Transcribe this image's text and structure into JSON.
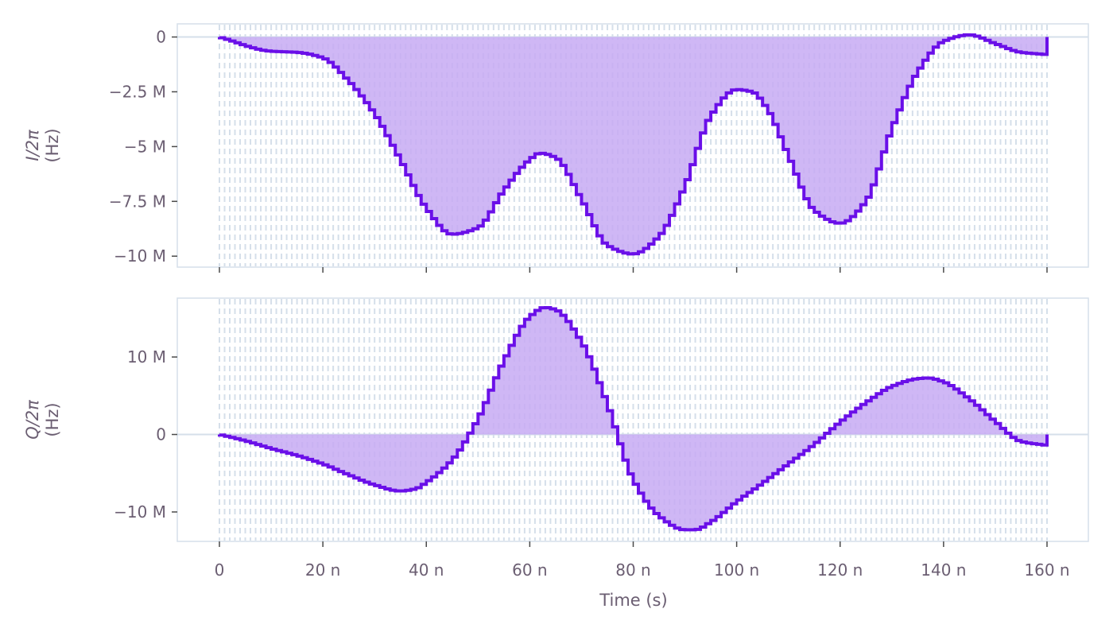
{
  "colors": {
    "line": "#6a0fe8",
    "fill": "#c7aaf3",
    "grid": "#d5dfea",
    "text": "#6b5e72"
  },
  "chart_data": [
    {
      "type": "line",
      "step": true,
      "fill_to_zero": true,
      "ylabel_main": "I/2π",
      "ylabel_unit": "(Hz)",
      "xlim": [
        0,
        160
      ],
      "ylim": [
        -10.5,
        0.6
      ],
      "yticks": [
        0,
        -2.5,
        -5,
        -7.5,
        -10
      ],
      "yticklabels": [
        "0",
        "−2.5 M",
        "−5 M",
        "−7.5 M",
        "−10 M"
      ],
      "x": [
        0,
        10,
        15,
        20,
        25,
        30,
        35,
        40,
        45,
        50,
        55,
        60,
        62,
        65,
        70,
        75,
        80,
        85,
        90,
        95,
        100,
        103,
        106,
        110,
        115,
        120,
        125,
        130,
        135,
        140,
        145,
        150,
        155,
        160
      ],
      "y": [
        0,
        -0.65,
        -0.7,
        -0.95,
        -2.0,
        -3.5,
        -5.6,
        -7.8,
        -9.0,
        -8.7,
        -7.0,
        -5.6,
        -5.3,
        -5.5,
        -7.4,
        -9.5,
        -9.9,
        -9.1,
        -6.8,
        -3.6,
        -2.4,
        -2.5,
        -3.3,
        -5.4,
        -7.9,
        -8.5,
        -7.5,
        -4.2,
        -1.6,
        -0.2,
        0.1,
        -0.3,
        -0.7,
        -0.8
      ]
    },
    {
      "type": "line",
      "step": true,
      "fill_to_zero": true,
      "ylabel_main": "Q/2π",
      "ylabel_unit": "(Hz)",
      "xlabel": "Time (s)",
      "xlim": [
        0,
        160
      ],
      "ylim": [
        -13.8,
        17.6
      ],
      "yticks": [
        10,
        0,
        -10
      ],
      "yticklabels": [
        "10 M",
        "0",
        "−10 M"
      ],
      "xticks": [
        0,
        20,
        40,
        60,
        80,
        100,
        120,
        140,
        160
      ],
      "xticklabels": [
        "0",
        "20 n",
        "40 n",
        "60 n",
        "80 n",
        "100 n",
        "120 n",
        "140 n",
        "160 n"
      ],
      "x": [
        0,
        5,
        10,
        15,
        20,
        25,
        30,
        35,
        38,
        40,
        45,
        50,
        55,
        60,
        63,
        65,
        70,
        75,
        80,
        85,
        90,
        92,
        95,
        100,
        105,
        110,
        115,
        120,
        125,
        130,
        135,
        137,
        140,
        145,
        150,
        155,
        160
      ],
      "y": [
        0,
        -0.8,
        -1.8,
        -2.7,
        -3.8,
        -5.2,
        -6.5,
        -7.3,
        -7.0,
        -6.2,
        -3.3,
        2.0,
        9.5,
        15.2,
        16.4,
        16.1,
        12.0,
        4.0,
        -5.8,
        -10.5,
        -12.3,
        -12.3,
        -11.3,
        -8.7,
        -6.3,
        -3.8,
        -1.3,
        1.6,
        4.1,
        6.2,
        7.2,
        7.3,
        6.8,
        4.6,
        1.7,
        -0.9,
        -1.4
      ]
    }
  ]
}
